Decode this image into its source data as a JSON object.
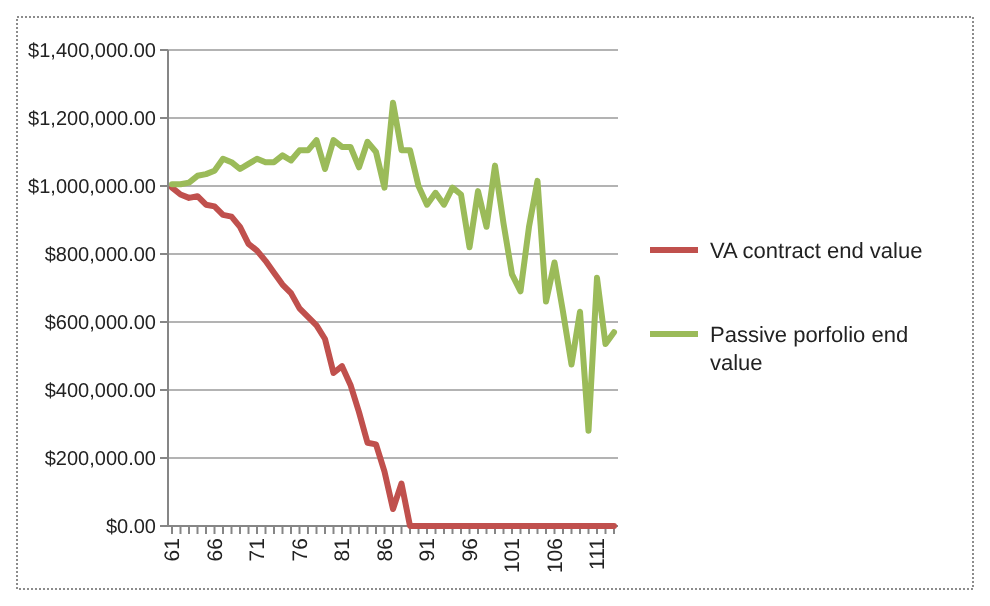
{
  "chart_data": {
    "type": "line",
    "categories": [
      "61",
      null,
      null,
      null,
      null,
      "66",
      null,
      null,
      null,
      null,
      "71",
      null,
      null,
      null,
      null,
      "76",
      null,
      null,
      null,
      null,
      "81",
      null,
      null,
      null,
      null,
      "86",
      null,
      null,
      null,
      null,
      "91",
      null,
      null,
      null,
      null,
      "96",
      null,
      null,
      null,
      null,
      "101",
      null,
      null,
      null,
      null,
      "106",
      null,
      null,
      null,
      null,
      "111",
      null,
      null
    ],
    "ylim": [
      0,
      1400000
    ],
    "yticks": [
      {
        "value": 0,
        "label": "$0.00"
      },
      {
        "value": 200000,
        "label": "$200,000.00"
      },
      {
        "value": 400000,
        "label": "$400,000.00"
      },
      {
        "value": 600000,
        "label": "$600,000.00"
      },
      {
        "value": 800000,
        "label": "$800,000.00"
      },
      {
        "value": 1000000,
        "label": "$1,000,000.00"
      },
      {
        "value": 1200000,
        "label": "$1,200,000.00"
      },
      {
        "value": 1400000,
        "label": "$1,400,000.00"
      }
    ],
    "grid": "y",
    "legend": "right",
    "marker": "none",
    "line_style": "solid",
    "series": [
      {
        "name": "VA contract end value",
        "color": "#c0504d",
        "values": [
          995000,
          975000,
          965000,
          970000,
          945000,
          940000,
          915000,
          910000,
          880000,
          830000,
          810000,
          780000,
          745000,
          710000,
          685000,
          640000,
          615000,
          590000,
          550000,
          450000,
          470000,
          415000,
          335000,
          245000,
          240000,
          160000,
          50000,
          125000,
          0,
          0,
          0,
          0,
          0,
          0,
          0,
          0,
          0,
          0,
          0,
          0,
          0,
          0,
          0,
          0,
          0,
          0,
          0,
          0,
          0,
          0,
          0,
          0,
          0
        ]
      },
      {
        "name": "Passive porfolio end value",
        "color": "#9bbb59",
        "values": [
          1005000,
          1005000,
          1010000,
          1030000,
          1035000,
          1045000,
          1080000,
          1070000,
          1050000,
          1065000,
          1080000,
          1070000,
          1070000,
          1090000,
          1075000,
          1105000,
          1105000,
          1135000,
          1050000,
          1135000,
          1115000,
          1115000,
          1055000,
          1130000,
          1100000,
          995000,
          1245000,
          1105000,
          1105000,
          1000000,
          945000,
          980000,
          945000,
          995000,
          975000,
          820000,
          985000,
          880000,
          1060000,
          890000,
          740000,
          690000,
          880000,
          1015000,
          660000,
          775000,
          630000,
          475000,
          630000,
          280000,
          730000,
          535000,
          570000
        ]
      }
    ]
  }
}
